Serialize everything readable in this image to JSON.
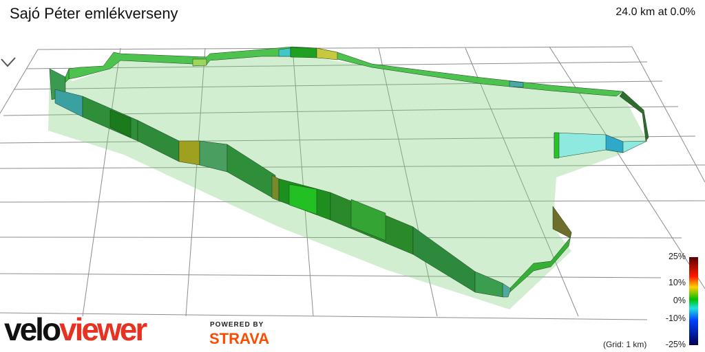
{
  "header": {
    "title": "Sajó Péter emlékverseny",
    "status": "24.0 km at 0.0%"
  },
  "branding": {
    "velo": "velo",
    "viewer": "viewer",
    "powered_by": "POWERED BY",
    "strava": "STRAVA"
  },
  "legend": {
    "labels": [
      "25%",
      "10%",
      "0%",
      "-10%",
      "-25%"
    ],
    "grid_note": "(Grid: 1 km)"
  },
  "colors": {
    "grid": "#8c8c8c",
    "viewer_red": "#e53222",
    "strava_orange": "#fc4c02"
  },
  "icons": {
    "nav": "chevron-down-icon"
  }
}
